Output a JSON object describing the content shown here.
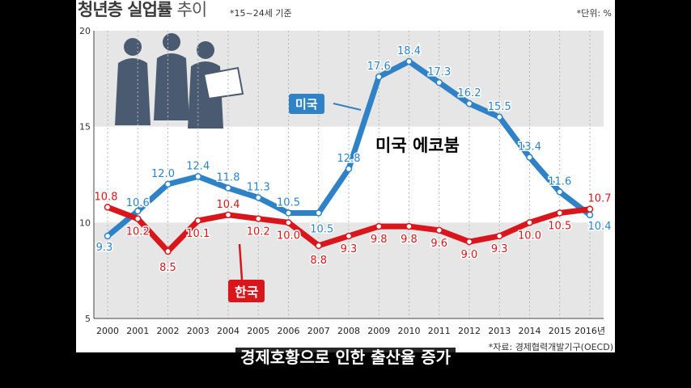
{
  "title": {
    "main": "청년층 실업률",
    "thin": "추이"
  },
  "subtitle": "*15~24세 기준",
  "unit": "*단위: %",
  "source": "*자료: 경제협력개발기구(OECD)",
  "annotation": "미국 에코붐",
  "video_subtitle": "경제호황으로 인한 출산율 증가",
  "colors": {
    "us": "#2f82c6",
    "kr": "#d8161c",
    "band": "#e6e6e6"
  },
  "chart_data": {
    "type": "line",
    "x": [
      "2000",
      "2001",
      "2002",
      "2003",
      "2004",
      "2005",
      "2006",
      "2007",
      "2008",
      "2009",
      "2010",
      "2011",
      "2012",
      "2013",
      "2014",
      "2015",
      "2016년"
    ],
    "ylim": [
      5,
      20
    ],
    "yticks": [
      "5",
      "10",
      "15",
      "20"
    ],
    "series": [
      {
        "name": "미국",
        "values": [
          "9.3",
          "10.6",
          "12.0",
          "12.4",
          "11.8",
          "11.3",
          "10.5",
          "10.5",
          "12.8",
          "17.6",
          "18.4",
          "17.3",
          "16.2",
          "15.5",
          "13.4",
          "11.6",
          "10.4"
        ]
      },
      {
        "name": "한국",
        "values": [
          "10.8",
          "10.2",
          "8.5",
          "10.1",
          "10.4",
          "10.2",
          "10.0",
          "8.8",
          "9.3",
          "9.8",
          "9.8",
          "9.6",
          "9.0",
          "9.3",
          "10.0",
          "10.5",
          "10.7"
        ]
      }
    ]
  }
}
